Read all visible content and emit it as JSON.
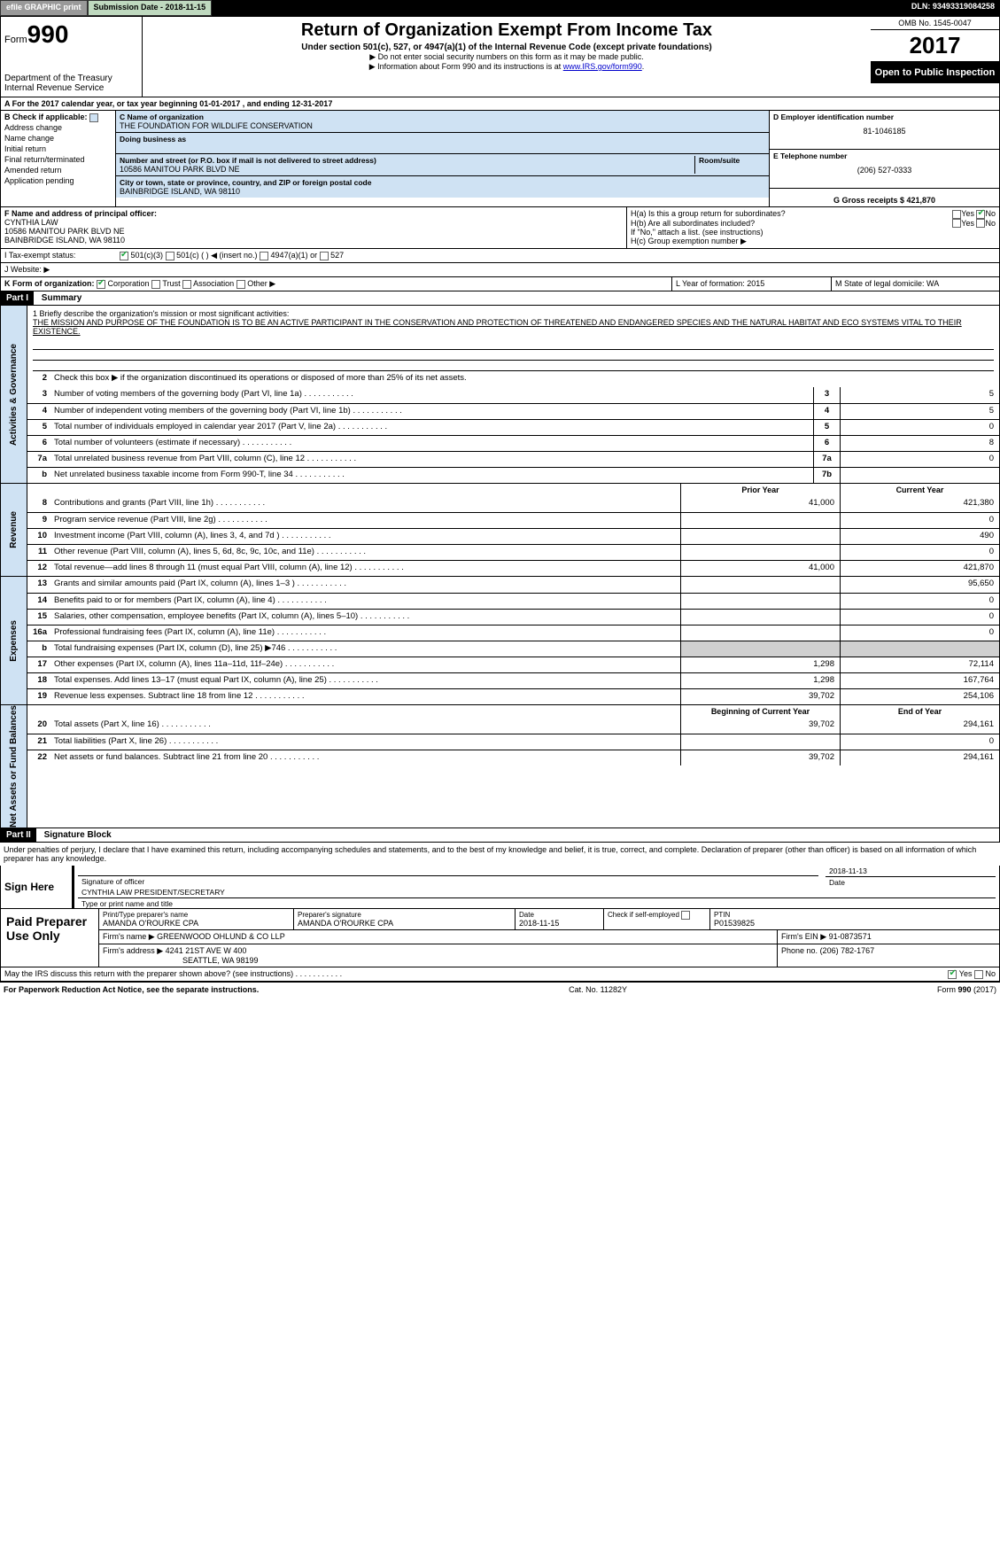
{
  "topbar": {
    "efile": "efile GRAPHIC print",
    "sub_label": "Submission Date - 2018-11-15",
    "dln": "DLN: 93493319084258"
  },
  "header": {
    "form_prefix": "Form",
    "form_no": "990",
    "dept1": "Department of the Treasury",
    "dept2": "Internal Revenue Service",
    "title": "Return of Organization Exempt From Income Tax",
    "subtitle": "Under section 501(c), 527, or 4947(a)(1) of the Internal Revenue Code (except private foundations)",
    "note1": "▶ Do not enter social security numbers on this form as it may be made public.",
    "note2_pre": "▶ Information about Form 990 and its instructions is at ",
    "note2_link": "www.IRS.gov/form990",
    "omb": "OMB No. 1545-0047",
    "year": "2017",
    "open": "Open to Public Inspection"
  },
  "row_a": "A  For the 2017 calendar year, or tax year beginning 01-01-2017     , and ending 12-31-2017",
  "col_b": {
    "header": "B Check if applicable:",
    "items": [
      "Address change",
      "Name change",
      "Initial return",
      "Final return/terminated",
      "Amended return",
      "Application pending"
    ]
  },
  "col_c": {
    "name_label": "C Name of organization",
    "name": "THE FOUNDATION FOR WILDLIFE CONSERVATION",
    "dba_label": "Doing business as",
    "addr_label": "Number and street (or P.O. box if mail is not delivered to street address)",
    "room_label": "Room/suite",
    "addr": "10586 MANITOU PARK BLVD NE",
    "city_label": "City or town, state or province, country, and ZIP or foreign postal code",
    "city": "BAINBRIDGE ISLAND, WA  98110"
  },
  "col_de": {
    "d_label": "D Employer identification number",
    "d_val": "81-1046185",
    "e_label": "E Telephone number",
    "e_val": "(206) 527-0333",
    "g_label": "G Gross receipts $ 421,870"
  },
  "row_f": {
    "label": "F Name and address of principal officer:",
    "line1": "CYNTHIA LAW",
    "line2": "10586 MANITOU PARK BLVD NE",
    "line3": "BAINBRIDGE ISLAND, WA  98110"
  },
  "row_h": {
    "ha": "H(a)  Is this a group return for subordinates?",
    "hb": "H(b)  Are all subordinates included?",
    "hb_note": "If \"No,\" attach a list. (see instructions)",
    "hc": "H(c)  Group exemption number ▶"
  },
  "row_i": {
    "label": "I   Tax-exempt status:",
    "o1": "501(c)(3)",
    "o2": "501(c) ( ) ◀ (insert no.)",
    "o3": "4947(a)(1) or",
    "o4": "527"
  },
  "row_j": "J   Website: ▶",
  "row_k": {
    "label": "K Form of organization:",
    "opts": [
      "Corporation",
      "Trust",
      "Association",
      "Other ▶"
    ]
  },
  "row_lm": {
    "l": "L Year of formation: 2015",
    "m": "M State of legal domicile: WA"
  },
  "part1": {
    "hdr": "Part I",
    "title": "Summary"
  },
  "mission": {
    "label": "1  Briefly describe the organization's mission or most significant activities:",
    "text": "THE MISSION AND PURPOSE OF THE FOUNDATION IS TO BE AN ACTIVE PARTICIPANT IN THE CONSERVATION AND PROTECTION OF THREATENED AND ENDANGERED SPECIES AND THE NATURAL HABITAT AND ECO SYSTEMS VITAL TO THEIR EXISTENCE."
  },
  "gov": {
    "tab": "Activities & Governance",
    "l2": "Check this box ▶      if the organization discontinued its operations or disposed of more than 25% of its net assets.",
    "rows": [
      {
        "n": "3",
        "t": "Number of voting members of the governing body (Part VI, line 1a)",
        "b": "3",
        "v": "5"
      },
      {
        "n": "4",
        "t": "Number of independent voting members of the governing body (Part VI, line 1b)",
        "b": "4",
        "v": "5"
      },
      {
        "n": "5",
        "t": "Total number of individuals employed in calendar year 2017 (Part V, line 2a)",
        "b": "5",
        "v": "0"
      },
      {
        "n": "6",
        "t": "Total number of volunteers (estimate if necessary)",
        "b": "6",
        "v": "8"
      },
      {
        "n": "7a",
        "t": "Total unrelated business revenue from Part VIII, column (C), line 12",
        "b": "7a",
        "v": "0"
      },
      {
        "n": "b",
        "t": "Net unrelated business taxable income from Form 990-T, line 34",
        "b": "7b",
        "v": ""
      }
    ]
  },
  "rev": {
    "tab": "Revenue",
    "hdr_prior": "Prior Year",
    "hdr_curr": "Current Year",
    "rows": [
      {
        "n": "8",
        "t": "Contributions and grants (Part VIII, line 1h)",
        "p": "41,000",
        "c": "421,380"
      },
      {
        "n": "9",
        "t": "Program service revenue (Part VIII, line 2g)",
        "p": "",
        "c": "0"
      },
      {
        "n": "10",
        "t": "Investment income (Part VIII, column (A), lines 3, 4, and 7d )",
        "p": "",
        "c": "490"
      },
      {
        "n": "11",
        "t": "Other revenue (Part VIII, column (A), lines 5, 6d, 8c, 9c, 10c, and 11e)",
        "p": "",
        "c": "0"
      },
      {
        "n": "12",
        "t": "Total revenue—add lines 8 through 11 (must equal Part VIII, column (A), line 12)",
        "p": "41,000",
        "c": "421,870"
      }
    ]
  },
  "exp": {
    "tab": "Expenses",
    "rows": [
      {
        "n": "13",
        "t": "Grants and similar amounts paid (Part IX, column (A), lines 1–3 )",
        "p": "",
        "c": "95,650"
      },
      {
        "n": "14",
        "t": "Benefits paid to or for members (Part IX, column (A), line 4)",
        "p": "",
        "c": "0"
      },
      {
        "n": "15",
        "t": "Salaries, other compensation, employee benefits (Part IX, column (A), lines 5–10)",
        "p": "",
        "c": "0"
      },
      {
        "n": "16a",
        "t": "Professional fundraising fees (Part IX, column (A), line 11e)",
        "p": "",
        "c": "0"
      },
      {
        "n": "b",
        "t": "Total fundraising expenses (Part IX, column (D), line 25) ▶746",
        "p": "grey",
        "c": "grey"
      },
      {
        "n": "17",
        "t": "Other expenses (Part IX, column (A), lines 11a–11d, 11f–24e)",
        "p": "1,298",
        "c": "72,114"
      },
      {
        "n": "18",
        "t": "Total expenses. Add lines 13–17 (must equal Part IX, column (A), line 25)",
        "p": "1,298",
        "c": "167,764"
      },
      {
        "n": "19",
        "t": "Revenue less expenses. Subtract line 18 from line 12",
        "p": "39,702",
        "c": "254,106"
      }
    ]
  },
  "net": {
    "tab": "Net Assets or Fund Balances",
    "hdr_beg": "Beginning of Current Year",
    "hdr_end": "End of Year",
    "rows": [
      {
        "n": "20",
        "t": "Total assets (Part X, line 16)",
        "p": "39,702",
        "c": "294,161"
      },
      {
        "n": "21",
        "t": "Total liabilities (Part X, line 26)",
        "p": "",
        "c": "0"
      },
      {
        "n": "22",
        "t": "Net assets or fund balances. Subtract line 21 from line 20",
        "p": "39,702",
        "c": "294,161"
      }
    ]
  },
  "part2": {
    "hdr": "Part II",
    "title": "Signature Block"
  },
  "sig": {
    "decl": "Under penalties of perjury, I declare that I have examined this return, including accompanying schedules and statements, and to the best of my knowledge and belief, it is true, correct, and complete. Declaration of preparer (other than officer) is based on all information of which preparer has any knowledge.",
    "sign_here": "Sign Here",
    "sig_officer": "Signature of officer",
    "date": "2018-11-13",
    "date_lbl": "Date",
    "name": "CYNTHIA LAW  PRESIDENT/SECRETARY",
    "name_lbl": "Type or print name and title"
  },
  "paid": {
    "title": "Paid Preparer Use Only",
    "h_print": "Print/Type preparer's name",
    "h_sig": "Preparer's signature",
    "h_date": "Date",
    "h_check": "Check       if self-employed",
    "h_ptin": "PTIN",
    "v_name": "AMANDA O'ROURKE CPA",
    "v_sig": "AMANDA O'ROURKE CPA",
    "v_date": "2018-11-15",
    "v_ptin": "P01539825",
    "firm_name_lbl": "Firm's name     ▶",
    "firm_name": "GREENWOOD OHLUND & CO LLP",
    "firm_ein_lbl": "Firm's EIN ▶",
    "firm_ein": "91-0873571",
    "firm_addr_lbl": "Firm's address ▶",
    "firm_addr1": "4241 21ST AVE W 400",
    "firm_addr2": "SEATTLE, WA  98199",
    "phone_lbl": "Phone no.",
    "phone": "(206) 782-1767"
  },
  "footer": {
    "discuss": "May the IRS discuss this return with the preparer shown above? (see instructions)",
    "paperwork": "For Paperwork Reduction Act Notice, see the separate instructions.",
    "cat": "Cat. No. 11282Y",
    "formref": "Form 990 (2017)"
  }
}
